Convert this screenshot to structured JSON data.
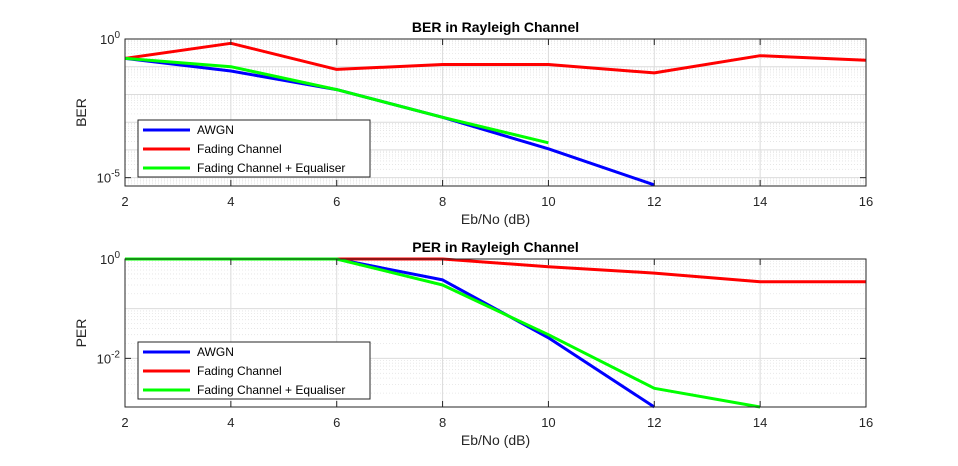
{
  "chart_data": [
    {
      "type": "line",
      "title": "BER in Rayleigh Channel",
      "xlabel": "Eb/No (dB)",
      "ylabel": "BER",
      "xlim": [
        2,
        16
      ],
      "ylim": [
        5e-06,
        1
      ],
      "yscale": "log",
      "xticks": [
        2,
        4,
        6,
        8,
        10,
        12,
        14,
        16
      ],
      "xtick_labels": [
        "2",
        "4",
        "6",
        "8",
        "10",
        "12",
        "14",
        "16"
      ],
      "yticks": [
        1,
        1e-05
      ],
      "ytick_labels": [
        {
          "base": "10",
          "exp": "0"
        },
        {
          "base": "10",
          "exp": "-5"
        }
      ],
      "grid": true,
      "legend_position": "bottom-left",
      "series": [
        {
          "name": "AWGN",
          "color": "#0000ff",
          "x": [
            2,
            4,
            6,
            8,
            10,
            12
          ],
          "y": [
            0.2,
            0.07,
            0.015,
            0.0015,
            0.00011,
            5.5e-06
          ]
        },
        {
          "name": "Fading Channel",
          "color": "#ff0000",
          "x": [
            2,
            4,
            6,
            8,
            10,
            12,
            14,
            16
          ],
          "y": [
            0.2,
            0.7,
            0.08,
            0.12,
            0.12,
            0.06,
            0.25,
            0.17
          ]
        },
        {
          "name": "Fading Channel + Equaliser",
          "color": "#00ff00",
          "x": [
            2,
            4,
            6,
            8,
            10
          ],
          "y": [
            0.2,
            0.1,
            0.015,
            0.0015,
            0.00018
          ]
        }
      ]
    },
    {
      "type": "line",
      "title": "PER in Rayleigh Channel",
      "xlabel": "Eb/No (dB)",
      "ylabel": "PER",
      "xlim": [
        2,
        16
      ],
      "ylim": [
        0.00105,
        1
      ],
      "yscale": "log",
      "xticks": [
        2,
        4,
        6,
        8,
        10,
        12,
        14,
        16
      ],
      "xtick_labels": [
        "2",
        "4",
        "6",
        "8",
        "10",
        "12",
        "14",
        "16"
      ],
      "yticks": [
        1,
        0.01
      ],
      "ytick_labels": [
        {
          "base": "10",
          "exp": "0"
        },
        {
          "base": "10",
          "exp": "-2"
        }
      ],
      "grid": true,
      "legend_position": "bottom-left",
      "series": [
        {
          "name": "AWGN",
          "color": "#0000ff",
          "x": [
            2,
            4,
            6,
            8,
            10,
            12
          ],
          "y": [
            1,
            1,
            1,
            0.38,
            0.026,
            0.00105
          ]
        },
        {
          "name": "Fading Channel",
          "color": "#ff0000",
          "x": [
            2,
            4,
            6,
            8,
            10,
            12,
            14,
            16
          ],
          "y": [
            1,
            1,
            1,
            1,
            0.7,
            0.52,
            0.35,
            0.35
          ]
        },
        {
          "name": "Fading Channel + Equaliser",
          "color": "#00ff00",
          "x": [
            2,
            4,
            6,
            8,
            10,
            12,
            14
          ],
          "y": [
            1,
            1,
            1,
            0.3,
            0.03,
            0.0025,
            0.00105
          ]
        }
      ]
    }
  ]
}
